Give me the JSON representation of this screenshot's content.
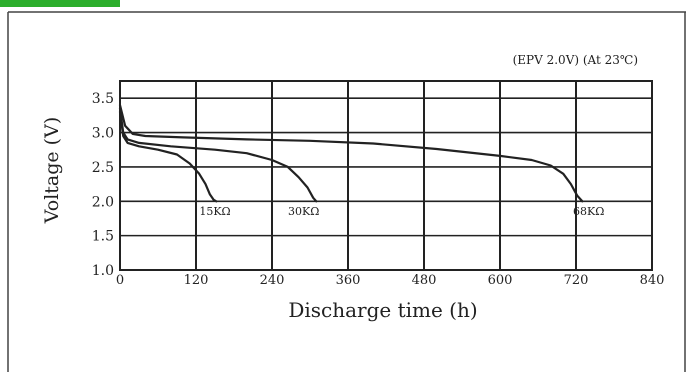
{
  "chart_data": {
    "type": "line",
    "condition_note": "(EPV 2.0V)  (At 23℃)",
    "xlabel": "Discharge time (h)",
    "ylabel": "Voltage (V)",
    "xlim": [
      0,
      840
    ],
    "ylim": [
      1.0,
      3.75
    ],
    "x_ticks": [
      0,
      120,
      240,
      360,
      480,
      600,
      720,
      840
    ],
    "y_ticks": [
      1.0,
      1.5,
      2.0,
      2.5,
      3.0,
      3.5
    ],
    "y_tick_labels": [
      "1.0",
      "1.5",
      "2.0",
      "2.5",
      "3.0",
      "3.5"
    ],
    "grid": true,
    "series": [
      {
        "name": "15KΩ",
        "x": [
          0,
          5,
          12,
          30,
          60,
          90,
          110,
          125,
          135,
          142,
          148,
          152
        ],
        "y": [
          3.3,
          2.95,
          2.85,
          2.8,
          2.75,
          2.68,
          2.55,
          2.4,
          2.25,
          2.1,
          2.02,
          2.0
        ]
      },
      {
        "name": "30KΩ",
        "x": [
          0,
          5,
          12,
          30,
          80,
          150,
          200,
          240,
          265,
          282,
          296,
          305,
          310
        ],
        "y": [
          3.35,
          3.0,
          2.9,
          2.85,
          2.8,
          2.75,
          2.7,
          2.6,
          2.5,
          2.35,
          2.2,
          2.05,
          2.0
        ]
      },
      {
        "name": "68KΩ",
        "x": [
          0,
          8,
          20,
          40,
          100,
          200,
          300,
          400,
          500,
          600,
          650,
          680,
          700,
          712,
          722,
          730
        ],
        "y": [
          3.4,
          3.1,
          2.98,
          2.95,
          2.93,
          2.9,
          2.88,
          2.84,
          2.76,
          2.66,
          2.6,
          2.52,
          2.4,
          2.25,
          2.08,
          2.0
        ]
      }
    ],
    "series_label_positions": [
      {
        "name": "15KΩ",
        "x": 150,
        "y": 1.86
      },
      {
        "name": "30KΩ",
        "x": 290,
        "y": 1.86
      },
      {
        "name": "68KΩ",
        "x": 740,
        "y": 1.86
      }
    ],
    "colors": {
      "line": "#222222",
      "grid": "#222222",
      "text": "#222222",
      "accent_green": "#2cae2c",
      "frame": "#444444"
    }
  }
}
